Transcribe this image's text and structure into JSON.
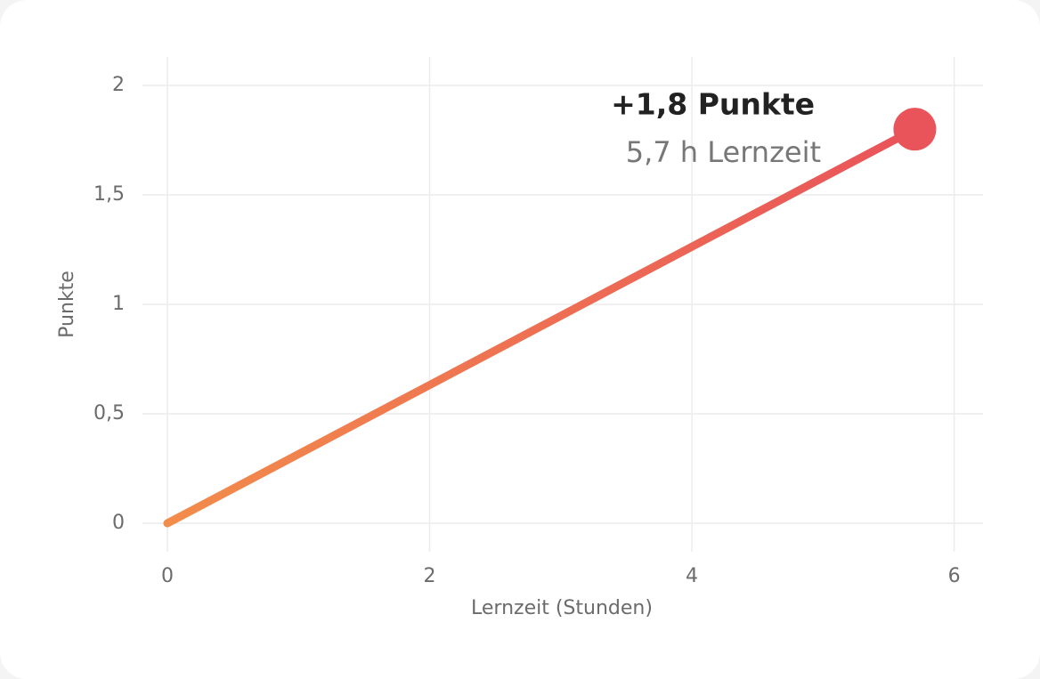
{
  "chart_data": {
    "type": "line",
    "x": [
      0,
      5.7
    ],
    "series": [
      {
        "values": [
          0,
          1.8
        ],
        "color": "#e9535a",
        "start_color": "#f28c4b"
      }
    ],
    "xlabel": "Lernzeit (Stunden)",
    "ylabel": "Punkte",
    "xlim": [
      -0.19,
      6.22
    ],
    "xticks": [
      0,
      2,
      4,
      6
    ],
    "ylim": [
      -0.13,
      2.13
    ],
    "yticks": [
      0,
      {
        "value": 0.5,
        "label": "0,5"
      },
      1,
      {
        "value": 1.5,
        "label": "1,5"
      },
      2
    ],
    "grid": true,
    "annotations": [
      "+1,8 Punkte",
      "5,7 h Lernzeit"
    ]
  }
}
